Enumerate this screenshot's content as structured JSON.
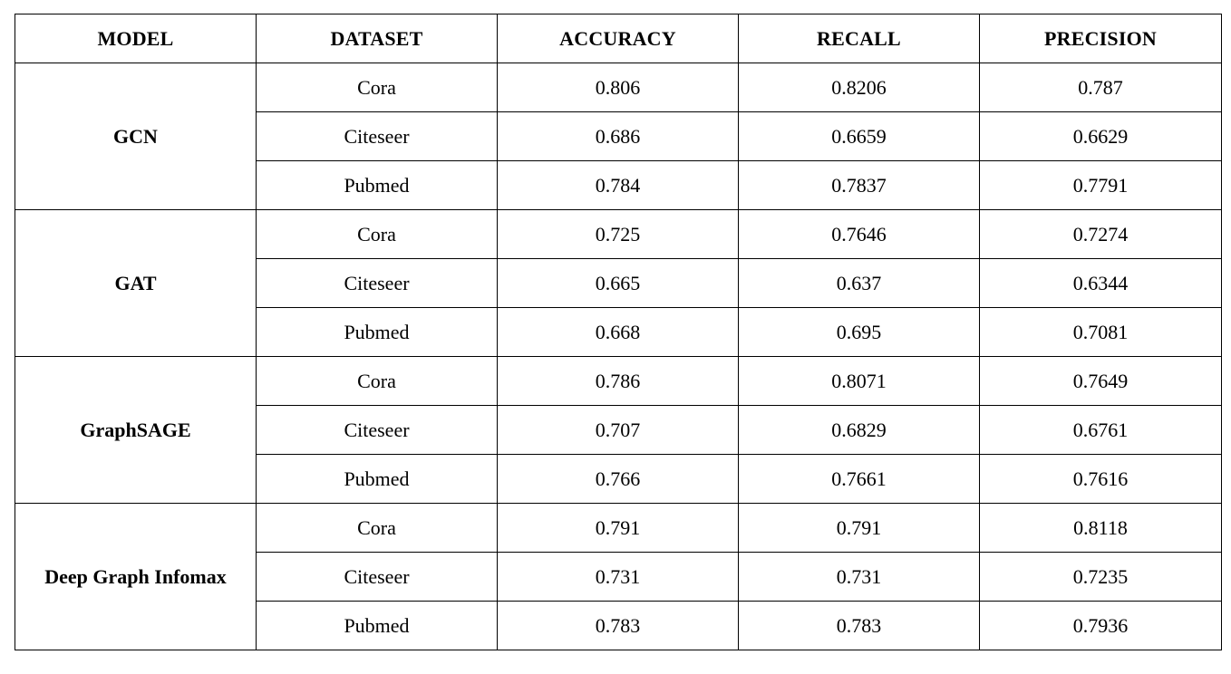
{
  "table": {
    "headers": [
      "MODEL",
      "DATASET",
      "ACCURACY",
      "RECALL",
      "PRECISION"
    ],
    "groups": [
      {
        "model": "GCN",
        "rows": [
          {
            "dataset": "Cora",
            "accuracy": "0.806",
            "recall": "0.8206",
            "precision": "0.787"
          },
          {
            "dataset": "Citeseer",
            "accuracy": "0.686",
            "recall": "0.6659",
            "precision": "0.6629"
          },
          {
            "dataset": "Pubmed",
            "accuracy": "0.784",
            "recall": "0.7837",
            "precision": "0.7791"
          }
        ]
      },
      {
        "model": "GAT",
        "rows": [
          {
            "dataset": "Cora",
            "accuracy": "0.725",
            "recall": "0.7646",
            "precision": "0.7274"
          },
          {
            "dataset": "Citeseer",
            "accuracy": "0.665",
            "recall": "0.637",
            "precision": "0.6344"
          },
          {
            "dataset": "Pubmed",
            "accuracy": "0.668",
            "recall": "0.695",
            "precision": "0.7081"
          }
        ]
      },
      {
        "model": "GraphSAGE",
        "rows": [
          {
            "dataset": "Cora",
            "accuracy": "0.786",
            "recall": "0.8071",
            "precision": "0.7649"
          },
          {
            "dataset": "Citeseer",
            "accuracy": "0.707",
            "recall": "0.6829",
            "precision": "0.6761"
          },
          {
            "dataset": "Pubmed",
            "accuracy": "0.766",
            "recall": "0.7661",
            "precision": "0.7616"
          }
        ]
      },
      {
        "model": "Deep Graph Infomax",
        "rows": [
          {
            "dataset": "Cora",
            "accuracy": "0.791",
            "recall": "0.791",
            "precision": "0.8118"
          },
          {
            "dataset": "Citeseer",
            "accuracy": "0.731",
            "recall": "0.731",
            "precision": "0.7235"
          },
          {
            "dataset": "Pubmed",
            "accuracy": "0.783",
            "recall": "0.783",
            "precision": "0.7936"
          }
        ]
      }
    ]
  }
}
